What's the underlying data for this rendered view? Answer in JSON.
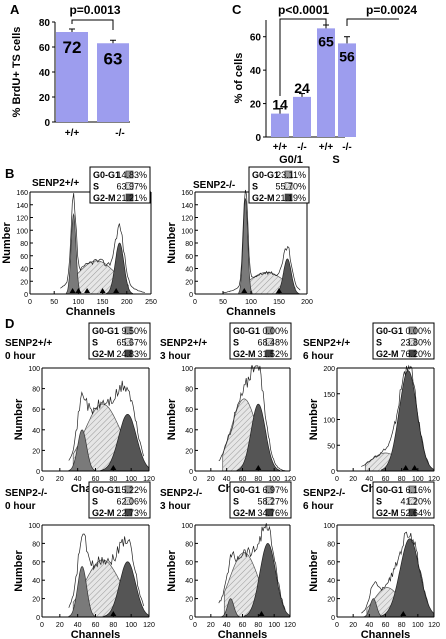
{
  "panel_labels": {
    "a": "A",
    "b": "B",
    "c": "C",
    "d": "D"
  },
  "chart_data": [
    {
      "type": "bar",
      "panel": "A",
      "ylabel": "% BrdU+ TS cells",
      "categories": [
        "+/+",
        "-/-"
      ],
      "values": [
        72,
        63
      ],
      "value_labels": [
        "72",
        "63"
      ],
      "ylim": [
        0,
        80
      ],
      "yticks": [
        "0",
        "20",
        "40",
        "60",
        "80"
      ],
      "annotation": "p=0.0013"
    },
    {
      "type": "bar",
      "panel": "C",
      "ylabel": "% of cells",
      "categories": [
        "+/+",
        "-/-",
        "+/+",
        "-/-"
      ],
      "groups": [
        "G0/1",
        "S"
      ],
      "values": [
        14,
        24,
        65,
        56
      ],
      "value_labels": [
        "14",
        "24",
        "65",
        "56"
      ],
      "ylim": [
        0,
        70
      ],
      "yticks": [
        "0",
        "20",
        "40",
        "60"
      ],
      "annotations": [
        "p<0.0001",
        "p=0.0024"
      ]
    },
    {
      "type": "area",
      "panel": "B",
      "title": "SENP2+/+",
      "xlabel": "Channels",
      "ylabel": "Number",
      "xlim": [
        0,
        250
      ],
      "ylim": [
        0,
        160
      ],
      "xticks": [
        "0",
        "50",
        "100",
        "150",
        "200",
        "250"
      ],
      "yticks": [
        "0",
        "20",
        "40",
        "60",
        "80",
        "100",
        "120",
        "140",
        "160"
      ],
      "legend": [
        [
          "G0-G1",
          "14.83%"
        ],
        [
          "S",
          "63.97%"
        ],
        [
          "G2-M",
          "21.21%"
        ]
      ]
    },
    {
      "type": "area",
      "panel": "B",
      "title": "SENP2-/-",
      "xlabel": "Channels",
      "ylabel": "Number",
      "xlim": [
        0,
        200
      ],
      "ylim": [
        0,
        160
      ],
      "xticks": [
        "0",
        "50",
        "100",
        "150",
        "200"
      ],
      "yticks": [
        "0",
        "20",
        "40",
        "60",
        "80",
        "100",
        "120",
        "140",
        "160"
      ],
      "legend": [
        [
          "G0-G1",
          "23.11%"
        ],
        [
          "S",
          "55.70%"
        ],
        [
          "G2-M",
          "21.19%"
        ]
      ]
    },
    {
      "type": "area",
      "panel": "D",
      "title": "SENP2+/+",
      "subtitle": "0 hour",
      "xlabel": "Channels",
      "ylabel": "Number",
      "xlim": [
        0,
        120
      ],
      "ylim": [
        0,
        100
      ],
      "xticks": [
        "0",
        "20",
        "40",
        "60",
        "80",
        "100",
        "120"
      ],
      "yticks": [
        "0",
        "20",
        "40",
        "60",
        "80",
        "100"
      ],
      "legend": [
        [
          "G0-G1",
          "9.50%"
        ],
        [
          "S",
          "65.67%"
        ],
        [
          "G2-M",
          "24.83%"
        ]
      ]
    },
    {
      "type": "area",
      "panel": "D",
      "title": "SENP2+/+",
      "subtitle": "3 hour",
      "xlabel": "Channels",
      "ylabel": "Number",
      "xlim": [
        0,
        120
      ],
      "ylim": [
        0,
        100
      ],
      "xticks": [
        "0",
        "20",
        "40",
        "60",
        "80",
        "100",
        "120"
      ],
      "yticks": [
        "0",
        "20",
        "40",
        "60",
        "80",
        "100"
      ],
      "legend": [
        [
          "G0-G1",
          "0.00%"
        ],
        [
          "S",
          "68.48%"
        ],
        [
          "G2-M",
          "31.52%"
        ]
      ]
    },
    {
      "type": "area",
      "panel": "D",
      "title": "SENP2+/+",
      "subtitle": "6 hour",
      "xlabel": "Channels",
      "ylabel": "Number",
      "xlim": [
        0,
        120
      ],
      "ylim": [
        0,
        200
      ],
      "xticks": [
        "0",
        "20",
        "40",
        "60",
        "80",
        "100",
        "120"
      ],
      "yticks": [
        "0",
        "50",
        "100",
        "150",
        "200"
      ],
      "legend": [
        [
          "G0-G1",
          "0.00%"
        ],
        [
          "S",
          "23.80%"
        ],
        [
          "G2-M",
          "76.20%"
        ]
      ]
    },
    {
      "type": "area",
      "panel": "D",
      "title": "SENP2-/-",
      "subtitle": "0 hour",
      "xlabel": "Channels",
      "ylabel": "Number",
      "xlim": [
        0,
        120
      ],
      "ylim": [
        0,
        100
      ],
      "xticks": [
        "0",
        "20",
        "40",
        "60",
        "80",
        "100",
        "120"
      ],
      "yticks": [
        "0",
        "20",
        "40",
        "60",
        "80",
        "100"
      ],
      "legend": [
        [
          "G0-G1",
          "15.22%"
        ],
        [
          "S",
          "62.06%"
        ],
        [
          "G2-M",
          "22.73%"
        ]
      ]
    },
    {
      "type": "area",
      "panel": "D",
      "title": "SENP2-/-",
      "subtitle": "3 hour",
      "xlabel": "Channels",
      "ylabel": "Number",
      "xlim": [
        0,
        120
      ],
      "ylim": [
        0,
        100
      ],
      "xticks": [
        "0",
        "20",
        "40",
        "60",
        "80",
        "100",
        "120"
      ],
      "yticks": [
        "0",
        "20",
        "40",
        "60",
        "80",
        "100"
      ],
      "legend": [
        [
          "G0-G1",
          "6.97%"
        ],
        [
          "S",
          "58.27%"
        ],
        [
          "G2-M",
          "34.76%"
        ]
      ]
    },
    {
      "type": "area",
      "panel": "D",
      "title": "SENP2-/-",
      "subtitle": "6 hour",
      "xlabel": "Channels",
      "ylabel": "Number",
      "xlim": [
        0,
        120
      ],
      "ylim": [
        0,
        100
      ],
      "xticks": [
        "0",
        "20",
        "40",
        "60",
        "80",
        "100",
        "120"
      ],
      "yticks": [
        "0",
        "20",
        "40",
        "60",
        "80",
        "100"
      ],
      "legend": [
        [
          "G0-G1",
          "6.16%"
        ],
        [
          "S",
          "41.20%"
        ],
        [
          "G2-M",
          "52.64%"
        ]
      ]
    }
  ]
}
